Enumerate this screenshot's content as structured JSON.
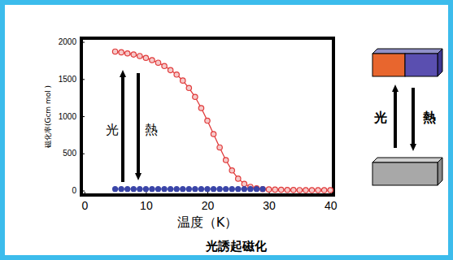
{
  "chart_data": {
    "type": "line",
    "title": "光誘起磁化",
    "x_label": "温度（K）",
    "y_label": "磁化率(Gcm  mol )",
    "xlim": [
      -0.5,
      40.5
    ],
    "ylim": [
      -60,
      2050
    ],
    "xticks": [
      0,
      10,
      20,
      30,
      40
    ],
    "yticks": [
      0,
      500,
      1000,
      1500,
      2000
    ],
    "grid": false,
    "series": [
      {
        "color": "#e03a3a",
        "marker": "open-circle",
        "line_style": "solid",
        "x": [
          5,
          6,
          7,
          8,
          9,
          10,
          11,
          12,
          13,
          14,
          15,
          16,
          17,
          18,
          19,
          20,
          21,
          22,
          23,
          24,
          25,
          26,
          27,
          28,
          29,
          30,
          31,
          32,
          33,
          34,
          35,
          36,
          37,
          38,
          39,
          40
        ],
        "values": [
          1870,
          1860,
          1845,
          1830,
          1810,
          1785,
          1755,
          1720,
          1675,
          1620,
          1560,
          1480,
          1380,
          1260,
          1110,
          940,
          760,
          580,
          410,
          270,
          160,
          90,
          50,
          30,
          20,
          15,
          12,
          10,
          8,
          7,
          6,
          5,
          5,
          5,
          5,
          5
        ]
      },
      {
        "color": "#3a45a8",
        "marker": "circle",
        "line_style": "solid",
        "x": [
          5,
          6,
          7,
          8,
          9,
          10,
          11,
          12,
          13,
          14,
          15,
          16,
          17,
          18,
          19,
          20,
          21,
          22,
          23,
          24,
          25,
          26,
          27,
          28,
          29
        ],
        "values": [
          20,
          20,
          20,
          20,
          20,
          20,
          20,
          20,
          20,
          20,
          20,
          20,
          20,
          20,
          20,
          20,
          20,
          20,
          20,
          20,
          20,
          20,
          20,
          20,
          20
        ]
      }
    ],
    "annotations": [
      {
        "text": "光"
      },
      {
        "text": "熱"
      }
    ]
  },
  "diagram": {
    "labels": [
      "光",
      "熱"
    ]
  }
}
